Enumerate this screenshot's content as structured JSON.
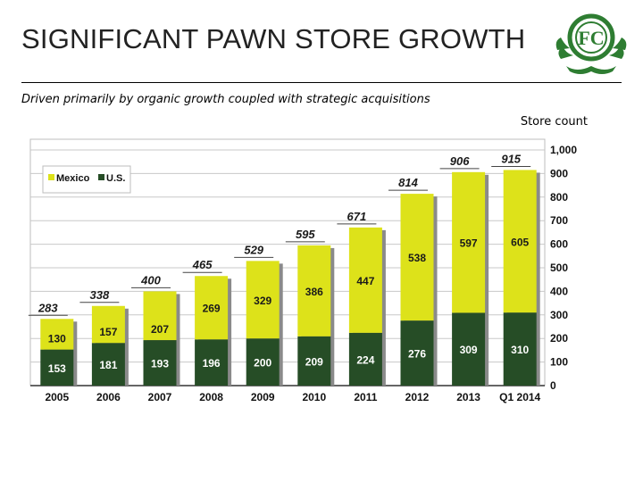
{
  "header": {
    "title": "SIGNIFICANT PAWN STORE GROWTH",
    "subtitle": "Driven primarily by organic growth coupled with strategic acquisitions",
    "unit_label": "Store count"
  },
  "logo": {
    "letters": "FC",
    "color": "#2e7d32"
  },
  "chart_data": {
    "type": "bar",
    "stacked": true,
    "categories": [
      "2005",
      "2006",
      "2007",
      "2008",
      "2009",
      "2010",
      "2011",
      "2012",
      "2013",
      "Q1 2014"
    ],
    "series": [
      {
        "name": "U.S.",
        "color": "#264d26",
        "values": [
          153,
          181,
          193,
          196,
          200,
          209,
          224,
          276,
          309,
          310
        ]
      },
      {
        "name": "Mexico",
        "color": "#dde21a",
        "values": [
          130,
          157,
          207,
          269,
          329,
          386,
          447,
          538,
          597,
          605
        ]
      }
    ],
    "totals": [
      283,
      338,
      400,
      465,
      529,
      595,
      671,
      814,
      906,
      915
    ],
    "ylim": [
      0,
      1000
    ],
    "y_ticks": [
      "0",
      "100",
      "200",
      "300",
      "400",
      "500",
      "600",
      "700",
      "800",
      "900",
      "1,000"
    ],
    "y_axis_side": "right",
    "gridlines": true,
    "legend_position": "top-left"
  }
}
